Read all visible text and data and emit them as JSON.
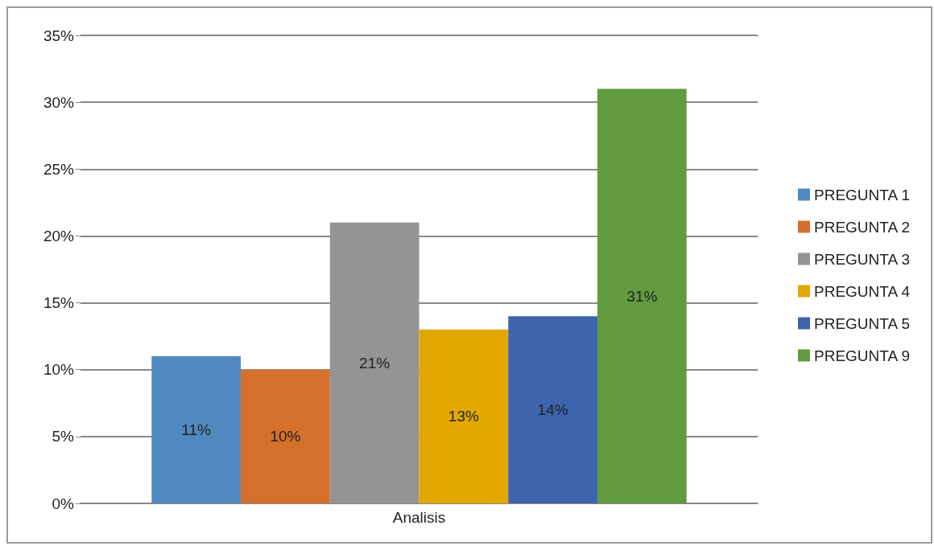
{
  "chart_data": {
    "type": "bar",
    "categories": [
      "Analisis"
    ],
    "series": [
      {
        "name": "PREGUNTA 1",
        "color": "#4f89c0",
        "values": [
          11
        ],
        "value_labels": [
          "11%"
        ]
      },
      {
        "name": "PREGUNTA 2",
        "color": "#d4702c",
        "values": [
          10
        ],
        "value_labels": [
          "10%"
        ]
      },
      {
        "name": "PREGUNTA 3",
        "color": "#949494",
        "values": [
          21
        ],
        "value_labels": [
          "21%"
        ]
      },
      {
        "name": "PREGUNTA 4",
        "color": "#e3a800",
        "values": [
          13
        ],
        "value_labels": [
          "13%"
        ]
      },
      {
        "name": "PREGUNTA 5",
        "color": "#3d64ad",
        "values": [
          14
        ],
        "value_labels": [
          "14%"
        ]
      },
      {
        "name": "PREGUNTA 9",
        "color": "#629a3f",
        "values": [
          31
        ],
        "value_labels": [
          "31%"
        ]
      }
    ],
    "ylim": [
      0,
      35
    ],
    "yticks": [
      {
        "value": 0,
        "label": "0%"
      },
      {
        "value": 5,
        "label": "5%"
      },
      {
        "value": 10,
        "label": "10%"
      },
      {
        "value": 15,
        "label": "15%"
      },
      {
        "value": 20,
        "label": "20%"
      },
      {
        "value": 25,
        "label": "25%"
      },
      {
        "value": 30,
        "label": "30%"
      },
      {
        "value": 35,
        "label": "35%"
      }
    ],
    "grid": "y",
    "legend": "right"
  }
}
